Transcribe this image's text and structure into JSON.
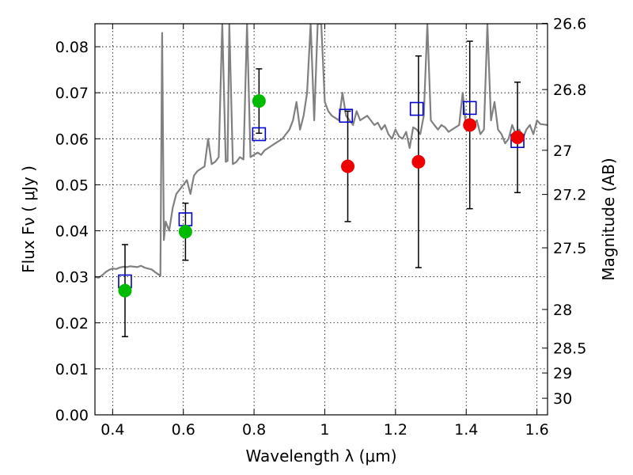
{
  "chart_data": {
    "type": "scatter",
    "xlabel": "Wavelength  λ (μm)",
    "ylabel": "Flux  Fν  ( μJy )",
    "y2label": "Magnitude (AB)",
    "xlim": [
      0.35,
      1.63
    ],
    "ylim": [
      0.0,
      0.085
    ],
    "grid": true,
    "x_ticks": [
      0.4,
      0.6,
      0.8,
      1.0,
      1.2,
      1.4,
      1.6
    ],
    "x_tick_labels": [
      "0.4",
      "0.6",
      "0.8",
      "1",
      "1.2",
      "1.4",
      "1.6"
    ],
    "y_ticks": [
      0.0,
      0.01,
      0.02,
      0.03,
      0.04,
      0.05,
      0.06,
      0.07,
      0.08
    ],
    "y_tick_labels": [
      "0.00",
      "0.01",
      "0.02",
      "0.03",
      "0.04",
      "0.05",
      "0.06",
      "0.07",
      "0.08"
    ],
    "y2_ticks": [
      {
        "flux": 0.0851,
        "label": "26.6"
      },
      {
        "flux": 0.0707,
        "label": "26.8"
      },
      {
        "flux": 0.0575,
        "label": "27"
      },
      {
        "flux": 0.0479,
        "label": "27.2"
      },
      {
        "flux": 0.0363,
        "label": "27.5"
      },
      {
        "flux": 0.0229,
        "label": "28"
      },
      {
        "flux": 0.0145,
        "label": "28.5"
      },
      {
        "flux": 0.0091,
        "label": "29"
      },
      {
        "flux": 0.0036,
        "label": "30"
      }
    ],
    "series": [
      {
        "kind": "model_spectrum",
        "color": "#808080",
        "x": [
          0.35,
          0.36,
          0.37,
          0.38,
          0.39,
          0.4,
          0.41,
          0.42,
          0.43,
          0.44,
          0.45,
          0.46,
          0.47,
          0.48,
          0.49,
          0.5,
          0.51,
          0.52,
          0.53,
          0.535,
          0.54,
          0.545,
          0.55,
          0.56,
          0.57,
          0.58,
          0.59,
          0.6,
          0.61,
          0.62,
          0.63,
          0.64,
          0.65,
          0.66,
          0.67,
          0.68,
          0.69,
          0.7,
          0.71,
          0.72,
          0.725,
          0.73,
          0.74,
          0.75,
          0.76,
          0.77,
          0.78,
          0.79,
          0.8,
          0.81,
          0.82,
          0.83,
          0.84,
          0.85,
          0.86,
          0.87,
          0.88,
          0.89,
          0.9,
          0.91,
          0.92,
          0.93,
          0.94,
          0.95,
          0.96,
          0.97,
          0.98,
          0.99,
          1.0,
          1.01,
          1.02,
          1.03,
          1.04,
          1.05,
          1.06,
          1.07,
          1.08,
          1.09,
          1.1,
          1.11,
          1.12,
          1.13,
          1.14,
          1.15,
          1.16,
          1.17,
          1.18,
          1.19,
          1.2,
          1.21,
          1.22,
          1.23,
          1.24,
          1.25,
          1.26,
          1.27,
          1.28,
          1.29,
          1.3,
          1.31,
          1.32,
          1.33,
          1.34,
          1.35,
          1.36,
          1.37,
          1.38,
          1.39,
          1.4,
          1.41,
          1.42,
          1.43,
          1.44,
          1.45,
          1.46,
          1.47,
          1.48,
          1.49,
          1.5,
          1.51,
          1.52,
          1.53,
          1.54,
          1.55,
          1.56,
          1.57,
          1.58,
          1.59,
          1.6,
          1.61,
          1.62,
          1.63
        ],
        "y": [
          0.03,
          0.0298,
          0.0303,
          0.031,
          0.0315,
          0.0318,
          0.0317,
          0.032,
          0.0322,
          0.0321,
          0.0323,
          0.0322,
          0.0321,
          0.0324,
          0.032,
          0.0318,
          0.0316,
          0.031,
          0.0305,
          0.0302,
          0.083,
          0.038,
          0.042,
          0.04,
          0.045,
          0.048,
          0.049,
          0.05,
          0.051,
          0.048,
          0.052,
          0.053,
          0.0535,
          0.054,
          0.06,
          0.0545,
          0.055,
          0.056,
          0.085,
          0.055,
          0.0552,
          0.085,
          0.0545,
          0.055,
          0.056,
          0.0555,
          0.085,
          0.056,
          0.0565,
          0.057,
          0.0565,
          0.0575,
          0.058,
          0.0585,
          0.059,
          0.0595,
          0.06,
          0.061,
          0.062,
          0.064,
          0.068,
          0.062,
          0.065,
          0.07,
          0.085,
          0.064,
          0.085,
          0.085,
          0.068,
          0.066,
          0.065,
          0.0645,
          0.064,
          0.07,
          0.065,
          0.064,
          0.063,
          0.066,
          0.064,
          0.0645,
          0.065,
          0.064,
          0.063,
          0.0635,
          0.062,
          0.063,
          0.061,
          0.06,
          0.062,
          0.0605,
          0.06,
          0.0615,
          0.058,
          0.0625,
          0.062,
          0.061,
          0.065,
          0.085,
          0.064,
          0.063,
          0.062,
          0.063,
          0.0625,
          0.0615,
          0.062,
          0.0625,
          0.063,
          0.07,
          0.062,
          0.0625,
          0.063,
          0.064,
          0.061,
          0.062,
          0.085,
          0.064,
          0.068,
          0.062,
          0.061,
          0.059,
          0.06,
          0.063,
          0.061,
          0.062,
          0.06,
          0.062,
          0.063,
          0.061,
          0.064,
          0.0632,
          0.0631,
          0.063
        ]
      },
      {
        "kind": "model_bandpass_flux",
        "marker": "open-square",
        "color": "#0000cc",
        "x": [
          0.435,
          0.606,
          0.814,
          1.06,
          1.26,
          1.41,
          1.545
        ],
        "y": [
          0.029,
          0.0425,
          0.061,
          0.065,
          0.0665,
          0.0667,
          0.0595
        ]
      },
      {
        "kind": "observed_flux_optical",
        "marker": "filled-circle",
        "color": "#00bb00",
        "x": [
          0.435,
          0.606,
          0.814
        ],
        "y": [
          0.027,
          0.0398,
          0.0682
        ],
        "err_low": [
          0.01,
          0.0062,
          0.007
        ],
        "err_high": [
          0.01,
          0.0062,
          0.007
        ]
      },
      {
        "kind": "observed_flux_nir",
        "marker": "filled-circle",
        "color": "#ee0000",
        "x": [
          1.065,
          1.265,
          1.41,
          1.545
        ],
        "y": [
          0.054,
          0.055,
          0.063,
          0.0603
        ],
        "err_low": [
          0.012,
          0.023,
          0.0182,
          0.012
        ],
        "err_high": [
          0.012,
          0.023,
          0.0182,
          0.012
        ]
      }
    ]
  }
}
